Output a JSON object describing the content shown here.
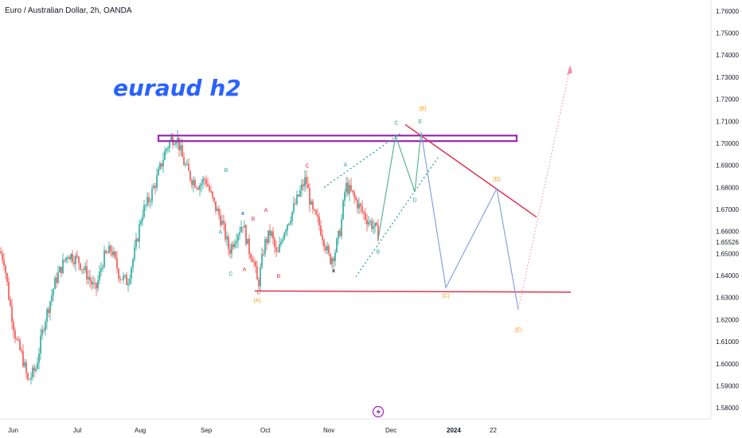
{
  "header": {
    "title": "Euro / Australian Dollar, 2h, OANDA"
  },
  "watermark": "euraud h2",
  "colors": {
    "candle_up": "#26a69a",
    "candle_down": "#ef5350",
    "resistance_box": "#9c27b0",
    "support_line": "#e0344f",
    "wave_green": "#26a69a",
    "wave_red": "#e0344f",
    "wave_blue": "#2962ff",
    "wave_orange": "#f39c12",
    "projection_blue": "#7b9be0",
    "projection_green": "#4caf90",
    "dotted_channel": "#26a69a",
    "pink_arrow": "#f48fb1"
  },
  "chart_data": {
    "type": "candlestick",
    "symbol": "Euro / Australian Dollar",
    "interval": "2h",
    "source": "OANDA",
    "ylim": [
      1.575,
      1.765
    ],
    "y_ticks": [
      "1.76000",
      "1.75000",
      "1.74000",
      "1.73000",
      "1.72000",
      "1.71000",
      "1.70000",
      "1.69000",
      "1.68000",
      "1.67000",
      "1.66000",
      "1.65526",
      "1.65000",
      "1.64000",
      "1.63000",
      "1.62000",
      "1.61000",
      "1.60000",
      "1.59000",
      "1.58000"
    ],
    "current_price": "1.65526",
    "x_ticks": [
      "Jun",
      "Jul",
      "Aug",
      "Sep",
      "Oct",
      "Nov",
      "Dec",
      "2024",
      "22"
    ],
    "price_path": [
      {
        "t": 0,
        "p": 1.651
      },
      {
        "t": 5,
        "p": 1.647
      },
      {
        "t": 12,
        "p": 1.628
      },
      {
        "t": 20,
        "p": 1.611
      },
      {
        "t": 28,
        "p": 1.603
      },
      {
        "t": 35,
        "p": 1.592
      },
      {
        "t": 45,
        "p": 1.598
      },
      {
        "t": 55,
        "p": 1.618
      },
      {
        "t": 70,
        "p": 1.638
      },
      {
        "t": 85,
        "p": 1.65
      },
      {
        "t": 98,
        "p": 1.647
      },
      {
        "t": 110,
        "p": 1.64
      },
      {
        "t": 120,
        "p": 1.633
      },
      {
        "t": 130,
        "p": 1.648
      },
      {
        "t": 140,
        "p": 1.652
      },
      {
        "t": 150,
        "p": 1.64
      },
      {
        "t": 160,
        "p": 1.637
      },
      {
        "t": 170,
        "p": 1.652
      },
      {
        "t": 178,
        "p": 1.668
      },
      {
        "t": 188,
        "p": 1.675
      },
      {
        "t": 198,
        "p": 1.685
      },
      {
        "t": 208,
        "p": 1.697
      },
      {
        "t": 215,
        "p": 1.702
      },
      {
        "t": 222,
        "p": 1.703
      },
      {
        "t": 230,
        "p": 1.692
      },
      {
        "t": 240,
        "p": 1.684
      },
      {
        "t": 250,
        "p": 1.681
      },
      {
        "t": 258,
        "p": 1.684
      },
      {
        "t": 268,
        "p": 1.673
      },
      {
        "t": 278,
        "p": 1.665
      },
      {
        "t": 288,
        "p": 1.651
      },
      {
        "t": 296,
        "p": 1.658
      },
      {
        "t": 305,
        "p": 1.664
      },
      {
        "t": 312,
        "p": 1.652
      },
      {
        "t": 318,
        "p": 1.648
      },
      {
        "t": 324,
        "p": 1.635
      },
      {
        "t": 332,
        "p": 1.654
      },
      {
        "t": 340,
        "p": 1.66
      },
      {
        "t": 348,
        "p": 1.648
      },
      {
        "t": 356,
        "p": 1.66
      },
      {
        "t": 366,
        "p": 1.668
      },
      {
        "t": 376,
        "p": 1.677
      },
      {
        "t": 384,
        "p": 1.684
      },
      {
        "t": 392,
        "p": 1.669
      },
      {
        "t": 400,
        "p": 1.664
      },
      {
        "t": 408,
        "p": 1.655
      },
      {
        "t": 414,
        "p": 1.647
      },
      {
        "t": 420,
        "p": 1.65
      },
      {
        "t": 428,
        "p": 1.662
      },
      {
        "t": 434,
        "p": 1.681
      },
      {
        "t": 442,
        "p": 1.677
      },
      {
        "t": 450,
        "p": 1.672
      },
      {
        "t": 460,
        "p": 1.666
      },
      {
        "t": 470,
        "p": 1.662
      },
      {
        "t": 476,
        "p": 1.658
      }
    ],
    "resistance_zone": {
      "from": 1.701,
      "to": 1.7035
    },
    "support_level": 1.633,
    "wave_labels": [
      {
        "text": "C",
        "color": "wave_green",
        "t": 498,
        "p": 1.7085
      },
      {
        "text": "E",
        "color": "wave_green",
        "t": 528,
        "p": 1.709
      },
      {
        "text": "(B)",
        "color": "wave_orange",
        "t": 531,
        "p": 1.715
      },
      {
        "text": "(D)",
        "color": "wave_orange",
        "t": 624,
        "p": 1.683
      },
      {
        "text": "(C)",
        "color": "wave_orange",
        "t": 560,
        "p": 1.63
      },
      {
        "text": "(E)",
        "color": "wave_orange",
        "t": 651,
        "p": 1.6145
      },
      {
        "text": "(A)",
        "color": "wave_orange",
        "t": 323,
        "p": 1.628
      },
      {
        "text": "C",
        "color": "wave_red",
        "t": 325,
        "p": 1.6315
      },
      {
        "text": "A",
        "color": "wave_red",
        "t": 307,
        "p": 1.642
      },
      {
        "text": "B",
        "color": "wave_red",
        "t": 318,
        "p": 1.665
      },
      {
        "text": "B",
        "color": "wave_red",
        "t": 350,
        "p": 1.639
      },
      {
        "text": "A",
        "color": "wave_red",
        "t": 334,
        "p": 1.669
      },
      {
        "text": "C",
        "color": "wave_red",
        "t": 386,
        "p": 1.689
      },
      {
        "text": "B",
        "color": "wave_green",
        "t": 284,
        "p": 1.687
      },
      {
        "text": "A",
        "color": "wave_green",
        "t": 277,
        "p": 1.659
      },
      {
        "text": "C",
        "color": "wave_green",
        "t": 290,
        "p": 1.64
      },
      {
        "text": "A",
        "color": "wave_green",
        "t": 434,
        "p": 1.6895
      },
      {
        "text": "B",
        "color": "wave_green",
        "t": 475,
        "p": 1.65
      },
      {
        "text": "D",
        "color": "wave_green",
        "t": 521,
        "p": 1.6735
      },
      {
        "text": "x",
        "color": "wave_blue",
        "t": 305,
        "p": 1.6675
      },
      {
        "text": "x",
        "color": "wave_black",
        "t": 419,
        "p": 1.6415
      }
    ]
  }
}
